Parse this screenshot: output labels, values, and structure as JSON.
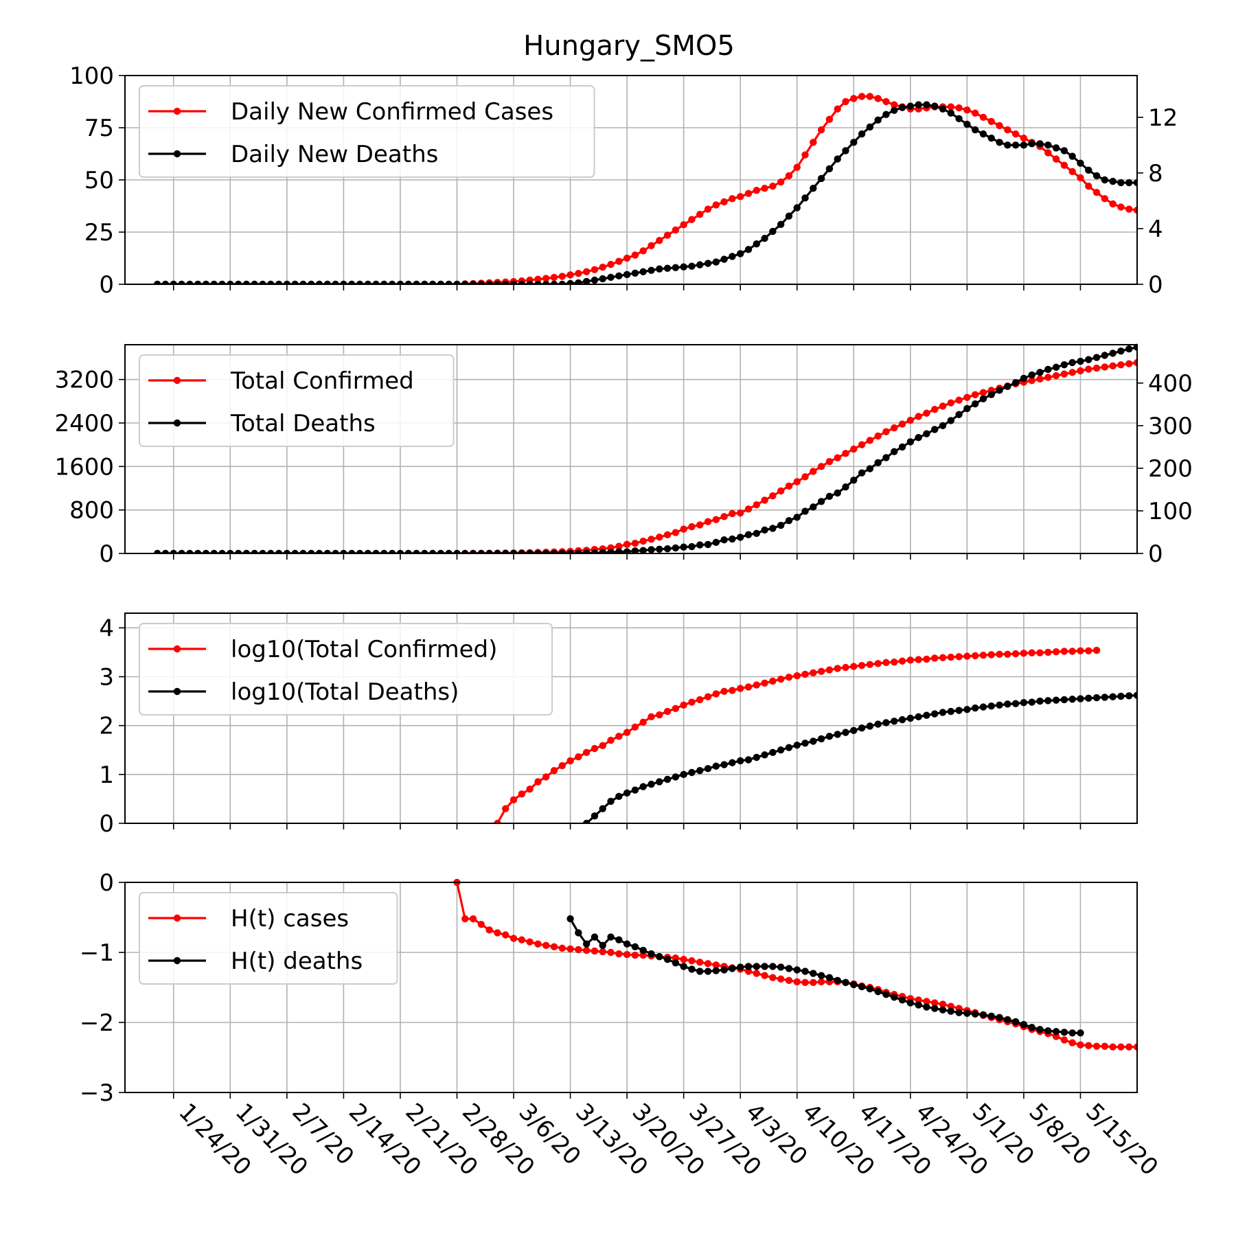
{
  "colors": {
    "cases": "#ff0000",
    "deaths": "#000000",
    "grid": "#b0b0b0"
  },
  "chart_data": {
    "title": "Hungary_SMO5",
    "type": "line",
    "x_tick_labels": [
      "1/24/20",
      "1/31/20",
      "2/7/20",
      "2/14/20",
      "2/21/20",
      "2/28/20",
      "3/6/20",
      "3/13/20",
      "3/20/20",
      "3/27/20",
      "4/3/20",
      "4/10/20",
      "4/17/20",
      "4/24/20",
      "5/1/20",
      "5/8/20",
      "5/15/20"
    ],
    "x_tick_dates": [
      "2020-01-24",
      "2020-01-31",
      "2020-02-07",
      "2020-02-14",
      "2020-02-21",
      "2020-02-28",
      "2020-03-06",
      "2020-03-13",
      "2020-03-20",
      "2020-03-27",
      "2020-04-03",
      "2020-04-10",
      "2020-04-17",
      "2020-04-24",
      "2020-05-01",
      "2020-05-08",
      "2020-05-15"
    ],
    "x_range": [
      "2020-01-18",
      "2020-05-22"
    ],
    "grid": true,
    "legend_position": "upper-left",
    "panels": [
      {
        "left_ticks": [
          "0",
          "25",
          "50",
          "75",
          "100"
        ],
        "left_tick_values": [
          0,
          25,
          50,
          75,
          100
        ],
        "left_ylim": [
          0,
          100
        ],
        "right_ticks": [
          "0",
          "4",
          "8",
          "12"
        ],
        "right_tick_values": [
          0,
          4,
          8,
          12
        ],
        "right_ylim": [
          0,
          15
        ],
        "series": [
          {
            "name": "Daily New Confirmed Cases",
            "color": "#ff0000",
            "axis": "left",
            "start": "2020-01-22",
            "values": [
              0,
              0,
              0,
              0,
              0,
              0,
              0,
              0,
              0,
              0,
              0,
              0,
              0,
              0,
              0,
              0,
              0,
              0,
              0,
              0,
              0,
              0,
              0,
              0,
              0,
              0,
              0,
              0,
              0,
              0,
              0,
              0,
              0,
              0,
              0,
              0,
              0,
              0,
              0.2,
              0.3,
              0.5,
              0.7,
              0.9,
              1.1,
              1.3,
              1.6,
              2.0,
              2.4,
              2.8,
              3.3,
              3.8,
              4.5,
              5.2,
              6.0,
              7.0,
              8.2,
              9.5,
              11,
              12.5,
              14,
              16,
              18.5,
              21,
              23.5,
              26,
              28.5,
              31,
              33.5,
              36,
              38,
              39.5,
              41,
              42,
              43.5,
              45,
              46,
              47,
              49,
              52,
              56,
              62,
              68,
              74,
              79,
              84,
              87.5,
              89,
              90,
              90,
              89,
              87.5,
              86,
              85,
              84,
              84,
              84.5,
              85,
              85,
              85,
              84.5,
              83.5,
              82,
              80,
              78,
              76,
              74,
              72,
              70,
              68,
              66,
              63,
              60,
              57,
              54,
              51,
              47,
              44,
              41,
              38.5,
              37,
              36,
              35.5,
              35.3,
              35.2,
              35.2,
              35.2,
              35,
              35,
              34.8
            ]
          },
          {
            "name": "Daily New Deaths",
            "color": "#000000",
            "axis": "right",
            "start": "2020-01-22",
            "values": [
              0,
              0,
              0,
              0,
              0,
              0,
              0,
              0,
              0,
              0,
              0,
              0,
              0,
              0,
              0,
              0,
              0,
              0,
              0,
              0,
              0,
              0,
              0,
              0,
              0,
              0,
              0,
              0,
              0,
              0,
              0,
              0,
              0,
              0,
              0,
              0,
              0,
              0,
              0,
              0,
              0,
              0,
              0,
              0,
              0,
              0,
              0,
              0,
              0,
              0,
              0,
              0.05,
              0.1,
              0.2,
              0.3,
              0.4,
              0.5,
              0.6,
              0.7,
              0.8,
              0.9,
              1.0,
              1.1,
              1.15,
              1.2,
              1.25,
              1.3,
              1.4,
              1.5,
              1.6,
              1.8,
              2.0,
              2.2,
              2.5,
              2.9,
              3.3,
              3.8,
              4.3,
              4.9,
              5.5,
              6.2,
              6.9,
              7.6,
              8.3,
              9.0,
              9.6,
              10.2,
              10.8,
              11.3,
              11.8,
              12.2,
              12.5,
              12.7,
              12.8,
              12.9,
              12.9,
              12.8,
              12.6,
              12.3,
              11.9,
              11.5,
              11.1,
              10.8,
              10.5,
              10.2,
              10.0,
              10.0,
              10.0,
              10.1,
              10.1,
              10.0,
              9.8,
              9.6,
              9.2,
              8.7,
              8.2,
              7.8,
              7.5,
              7.4,
              7.3,
              7.3,
              7.3
            ]
          }
        ],
        "legend": [
          "Daily New Confirmed Cases",
          "Daily New Deaths"
        ]
      },
      {
        "left_ticks": [
          "0",
          "800",
          "1600",
          "2400",
          "3200"
        ],
        "left_tick_values": [
          0,
          800,
          1600,
          2400,
          3200
        ],
        "left_ylim": [
          0,
          3840
        ],
        "right_ticks": [
          "0",
          "100",
          "200",
          "300",
          "400"
        ],
        "right_tick_values": [
          0,
          100,
          200,
          300,
          400
        ],
        "right_ylim": [
          0,
          490
        ],
        "series": [
          {
            "name": "Total Confirmed",
            "color": "#ff0000",
            "axis": "left",
            "start": "2020-01-22",
            "values": [
              0,
              0,
              0,
              0,
              0,
              0,
              0,
              0,
              0,
              0,
              0,
              0,
              0,
              0,
              0,
              0,
              0,
              0,
              0,
              0,
              0,
              0,
              0,
              0,
              0,
              0,
              0,
              0,
              0,
              0,
              0,
              0,
              0,
              0,
              0,
              0,
              0,
              0,
              1,
              2,
              3,
              4,
              5,
              7,
              9,
              12,
              15,
              19,
              23,
              28,
              32,
              39,
              50,
              58,
              73,
              85,
              103,
              131,
              167,
              187,
              226,
              261,
              300,
              343,
              385,
              447,
              492,
              525,
              585,
              623,
              678,
              733,
              744,
              817,
              895,
              980,
              1060,
              1150,
              1240,
              1320,
              1410,
              1510,
              1600,
              1690,
              1760,
              1840,
              1920,
              2000,
              2080,
              2160,
              2240,
              2310,
              2380,
              2450,
              2520,
              2580,
              2650,
              2710,
              2770,
              2820,
              2870,
              2920,
              2960,
              3000,
              3040,
              3080,
              3120,
              3150,
              3180,
              3210,
              3240,
              3270,
              3300,
              3330,
              3360,
              3390,
              3410,
              3430,
              3450,
              3470,
              3490,
              3510,
              3530,
              3550
            ]
          },
          {
            "name": "Total Deaths",
            "color": "#000000",
            "axis": "right",
            "start": "2020-01-22",
            "values": [
              0,
              0,
              0,
              0,
              0,
              0,
              0,
              0,
              0,
              0,
              0,
              0,
              0,
              0,
              0,
              0,
              0,
              0,
              0,
              0,
              0,
              0,
              0,
              0,
              0,
              0,
              0,
              0,
              0,
              0,
              0,
              0,
              0,
              0,
              0,
              0,
              0,
              0,
              0,
              0,
              0,
              0,
              0,
              0,
              0,
              0,
              0,
              0,
              0,
              0,
              0,
              0,
              0,
              1,
              1,
              2,
              3,
              4,
              4,
              6,
              7,
              9,
              10,
              11,
              13,
              15,
              16,
              20,
              21,
              26,
              32,
              34,
              38,
              44,
              47,
              55,
              59,
              66,
              77,
              85,
              99,
              109,
              122,
              134,
              142,
              156,
              172,
              189,
              199,
              213,
              225,
              239,
              250,
              262,
              272,
              281,
              291,
              300,
              312,
              326,
              340,
              351,
              363,
              373,
              383,
              392,
              401,
              411,
              419,
              425,
              432,
              437,
              443,
              448,
              451,
              455,
              460,
              465,
              470,
              475,
              480,
              484,
              489,
              492
            ]
          }
        ],
        "legend": [
          "Total Confirmed",
          "Total Deaths"
        ]
      },
      {
        "left_ticks": [
          "0",
          "1",
          "2",
          "3",
          "4"
        ],
        "left_tick_values": [
          0,
          1,
          2,
          3,
          4
        ],
        "left_ylim": [
          0,
          4.3
        ],
        "series": [
          {
            "name": "log10(Total Confirmed)",
            "color": "#ff0000",
            "axis": "left",
            "start": "2020-03-04",
            "values": [
              0,
              0.3,
              0.48,
              0.6,
              0.7,
              0.85,
              0.95,
              1.08,
              1.18,
              1.28,
              1.36,
              1.45,
              1.53,
              1.59,
              1.7,
              1.78,
              1.86,
              1.97,
              2.07,
              2.18,
              2.22,
              2.29,
              2.35,
              2.42,
              2.48,
              2.53,
              2.59,
              2.65,
              2.7,
              2.72,
              2.76,
              2.79,
              2.83,
              2.87,
              2.91,
              2.95,
              2.99,
              3.02,
              3.05,
              3.08,
              3.11,
              3.14,
              3.17,
              3.19,
              3.21,
              3.23,
              3.25,
              3.27,
              3.29,
              3.3,
              3.32,
              3.34,
              3.35,
              3.36,
              3.38,
              3.39,
              3.4,
              3.41,
              3.42,
              3.43,
              3.44,
              3.45,
              3.46,
              3.46,
              3.47,
              3.48,
              3.49,
              3.49,
              3.5,
              3.51,
              3.52,
              3.52,
              3.53,
              3.53,
              3.54
            ]
          },
          {
            "name": "log10(Total Deaths)",
            "color": "#000000",
            "axis": "right_as_left",
            "start": "2020-03-15",
            "values": [
              0,
              0.15,
              0.3,
              0.45,
              0.55,
              0.62,
              0.68,
              0.75,
              0.8,
              0.85,
              0.9,
              0.95,
              1.0,
              1.04,
              1.08,
              1.12,
              1.17,
              1.2,
              1.24,
              1.28,
              1.3,
              1.35,
              1.4,
              1.45,
              1.5,
              1.55,
              1.6,
              1.64,
              1.68,
              1.73,
              1.78,
              1.82,
              1.86,
              1.9,
              1.95,
              1.99,
              2.03,
              2.06,
              2.09,
              2.12,
              2.15,
              2.18,
              2.21,
              2.24,
              2.27,
              2.29,
              2.31,
              2.33,
              2.36,
              2.38,
              2.4,
              2.42,
              2.44,
              2.45,
              2.47,
              2.48,
              2.5,
              2.51,
              2.52,
              2.53,
              2.54,
              2.55,
              2.56,
              2.57,
              2.58,
              2.59,
              2.6,
              2.61,
              2.62,
              2.63,
              2.64
            ]
          }
        ],
        "legend": [
          "log10(Total Confirmed)",
          "log10(Total Deaths)"
        ]
      },
      {
        "left_ticks": [
          "−3",
          "−2",
          "−1",
          "0"
        ],
        "left_tick_values": [
          -3,
          -2,
          -1,
          0
        ],
        "left_ylim": [
          -3,
          0
        ],
        "series": [
          {
            "name": "H(t) cases",
            "color": "#ff0000",
            "axis": "left",
            "start": "2020-02-28",
            "values": [
              0,
              -0.52,
              -0.52,
              -0.6,
              -0.68,
              -0.72,
              -0.75,
              -0.8,
              -0.82,
              -0.85,
              -0.88,
              -0.9,
              -0.92,
              -0.94,
              -0.95,
              -0.96,
              -0.97,
              -0.98,
              -0.99,
              -1.0,
              -1.02,
              -1.03,
              -1.04,
              -1.04,
              -1.05,
              -1.06,
              -1.07,
              -1.08,
              -1.1,
              -1.12,
              -1.14,
              -1.16,
              -1.18,
              -1.2,
              -1.22,
              -1.24,
              -1.27,
              -1.3,
              -1.33,
              -1.36,
              -1.38,
              -1.4,
              -1.42,
              -1.43,
              -1.43,
              -1.42,
              -1.42,
              -1.42,
              -1.43,
              -1.45,
              -1.48,
              -1.5,
              -1.53,
              -1.57,
              -1.6,
              -1.63,
              -1.66,
              -1.68,
              -1.7,
              -1.72,
              -1.74,
              -1.77,
              -1.8,
              -1.83,
              -1.86,
              -1.9,
              -1.93,
              -1.96,
              -1.99,
              -2.02,
              -2.06,
              -2.1,
              -2.13,
              -2.16,
              -2.2,
              -2.25,
              -2.29,
              -2.32,
              -2.33,
              -2.34,
              -2.34,
              -2.35,
              -2.35,
              -2.35,
              -2.35
            ]
          },
          {
            "name": "H(t) deaths",
            "color": "#000000",
            "axis": "left",
            "start": "2020-03-13",
            "values": [
              -0.52,
              -0.72,
              -0.88,
              -0.78,
              -0.9,
              -0.78,
              -0.82,
              -0.88,
              -0.92,
              -0.97,
              -1.02,
              -1.06,
              -1.1,
              -1.15,
              -1.2,
              -1.24,
              -1.27,
              -1.27,
              -1.26,
              -1.25,
              -1.23,
              -1.21,
              -1.2,
              -1.2,
              -1.2,
              -1.2,
              -1.21,
              -1.23,
              -1.25,
              -1.27,
              -1.3,
              -1.33,
              -1.36,
              -1.4,
              -1.43,
              -1.46,
              -1.49,
              -1.52,
              -1.56,
              -1.6,
              -1.64,
              -1.68,
              -1.72,
              -1.75,
              -1.78,
              -1.8,
              -1.82,
              -1.84,
              -1.86,
              -1.87,
              -1.88,
              -1.89,
              -1.91,
              -1.93,
              -1.96,
              -1.99,
              -2.03,
              -2.07,
              -2.1,
              -2.12,
              -2.13,
              -2.14,
              -2.15,
              -2.15
            ]
          }
        ],
        "legend": [
          "H(t) cases",
          "H(t) deaths"
        ]
      }
    ]
  }
}
